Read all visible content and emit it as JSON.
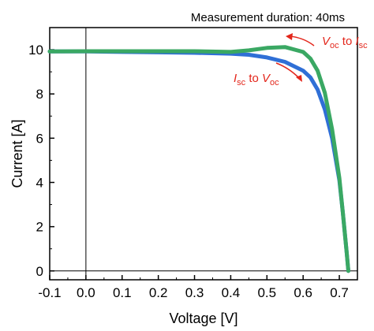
{
  "chart_data": {
    "type": "line",
    "header": "Measurement duration: 40ms",
    "xlabel": "Voltage [V]",
    "ylabel": "Current [A]",
    "xlim": [
      -0.1,
      0.75
    ],
    "ylim": [
      -0.4,
      11.0
    ],
    "xticks": [
      "-0.1",
      "0.0",
      "0.1",
      "0.2",
      "0.3",
      "0.4",
      "0.5",
      "0.6",
      "0.7"
    ],
    "yticks": [
      "0",
      "2",
      "4",
      "6",
      "8",
      "10"
    ],
    "grid": false,
    "zero_lines": true,
    "annotations": [
      {
        "main1": "V",
        "sub1": "oc",
        "mid": " to ",
        "main2": "I",
        "sub2": "sc",
        "arrow": "leftward"
      },
      {
        "main1": "I",
        "sub1": "sc",
        "mid": " to ",
        "main2": "V",
        "sub2": "oc",
        "arrow": "rightward"
      }
    ],
    "series": [
      {
        "color": "#2f6fd6",
        "x": [
          -0.1,
          0.0,
          0.1,
          0.2,
          0.3,
          0.4,
          0.45,
          0.5,
          0.55,
          0.6,
          0.62,
          0.64,
          0.66,
          0.68,
          0.7,
          0.71,
          0.72,
          0.725
        ],
        "y": [
          9.92,
          9.92,
          9.9,
          9.88,
          9.86,
          9.82,
          9.77,
          9.65,
          9.45,
          9.05,
          8.75,
          8.2,
          7.3,
          6.0,
          4.1,
          2.6,
          0.9,
          0.0
        ]
      },
      {
        "color": "#3aa863",
        "x": [
          -0.1,
          0.0,
          0.1,
          0.2,
          0.3,
          0.4,
          0.45,
          0.5,
          0.55,
          0.6,
          0.62,
          0.64,
          0.66,
          0.68,
          0.7,
          0.71,
          0.72,
          0.725
        ],
        "y": [
          9.92,
          9.93,
          9.93,
          9.93,
          9.93,
          9.9,
          9.97,
          10.08,
          10.12,
          9.9,
          9.6,
          9.05,
          8.05,
          6.4,
          4.2,
          2.6,
          0.9,
          0.0
        ]
      }
    ]
  }
}
